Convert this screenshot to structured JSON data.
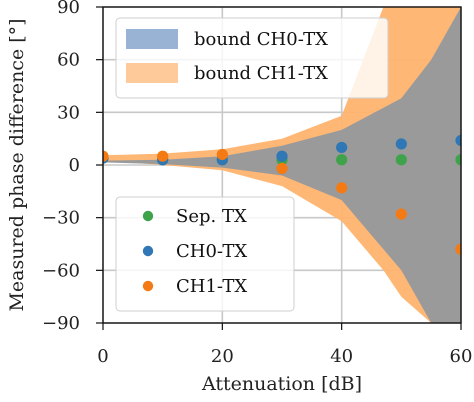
{
  "chart_data": {
    "type": "scatter",
    "xlabel": "Attenuation [dB]",
    "ylabel": "Measured phase difference [°]",
    "xlim": [
      0,
      60
    ],
    "ylim": [
      -90,
      90
    ],
    "xticks": [
      "0",
      "20",
      "40",
      "60"
    ],
    "yticks": [
      "90",
      "60",
      "30",
      "0",
      "−30",
      "−60",
      "−90"
    ],
    "grid": true,
    "bands": [
      {
        "name": "bound CH0-TX",
        "color": "#6e93c3",
        "x": [
          0,
          10,
          20,
          30,
          40,
          50,
          55,
          60
        ],
        "upper": [
          2.5,
          3,
          5,
          11,
          20,
          38,
          60,
          90
        ],
        "lower": [
          1.5,
          0.5,
          -1.5,
          -6,
          -20,
          -60,
          -90,
          -90
        ]
      },
      {
        "name": "bound CH1-TX",
        "color": "#ffb36e",
        "x": [
          0,
          10,
          20,
          30,
          40,
          47,
          50,
          55,
          60
        ],
        "upper": [
          5.5,
          6.5,
          9,
          15,
          28,
          90,
          90,
          90,
          90
        ],
        "lower": [
          2.5,
          0,
          -3,
          -12,
          -32,
          -60,
          -75,
          -90,
          -90
        ]
      }
    ],
    "series": [
      {
        "name": "Sep. TX",
        "color": "#3ea34a",
        "x": [
          0,
          10,
          20,
          30,
          40,
          50,
          60
        ],
        "y": [
          4,
          3,
          3,
          3,
          3,
          3,
          3
        ]
      },
      {
        "name": "CH0-TX",
        "color": "#2f77b5",
        "x": [
          0,
          10,
          20,
          30,
          40,
          50,
          60
        ],
        "y": [
          4,
          3,
          3,
          5,
          10,
          12,
          14
        ]
      },
      {
        "name": "CH1-TX",
        "color": "#f47a14",
        "x": [
          0,
          10,
          20,
          30,
          40,
          50,
          60
        ],
        "y": [
          5,
          5,
          6,
          -2,
          -13,
          -28,
          -48
        ]
      }
    ],
    "legend_upper": [
      "bound CH0-TX",
      "bound CH1-TX"
    ],
    "legend_lower": [
      "Sep. TX",
      "CH0-TX",
      "CH1-TX"
    ],
    "legend_upper_position": "upper-left",
    "legend_lower_position": "lower-left"
  }
}
